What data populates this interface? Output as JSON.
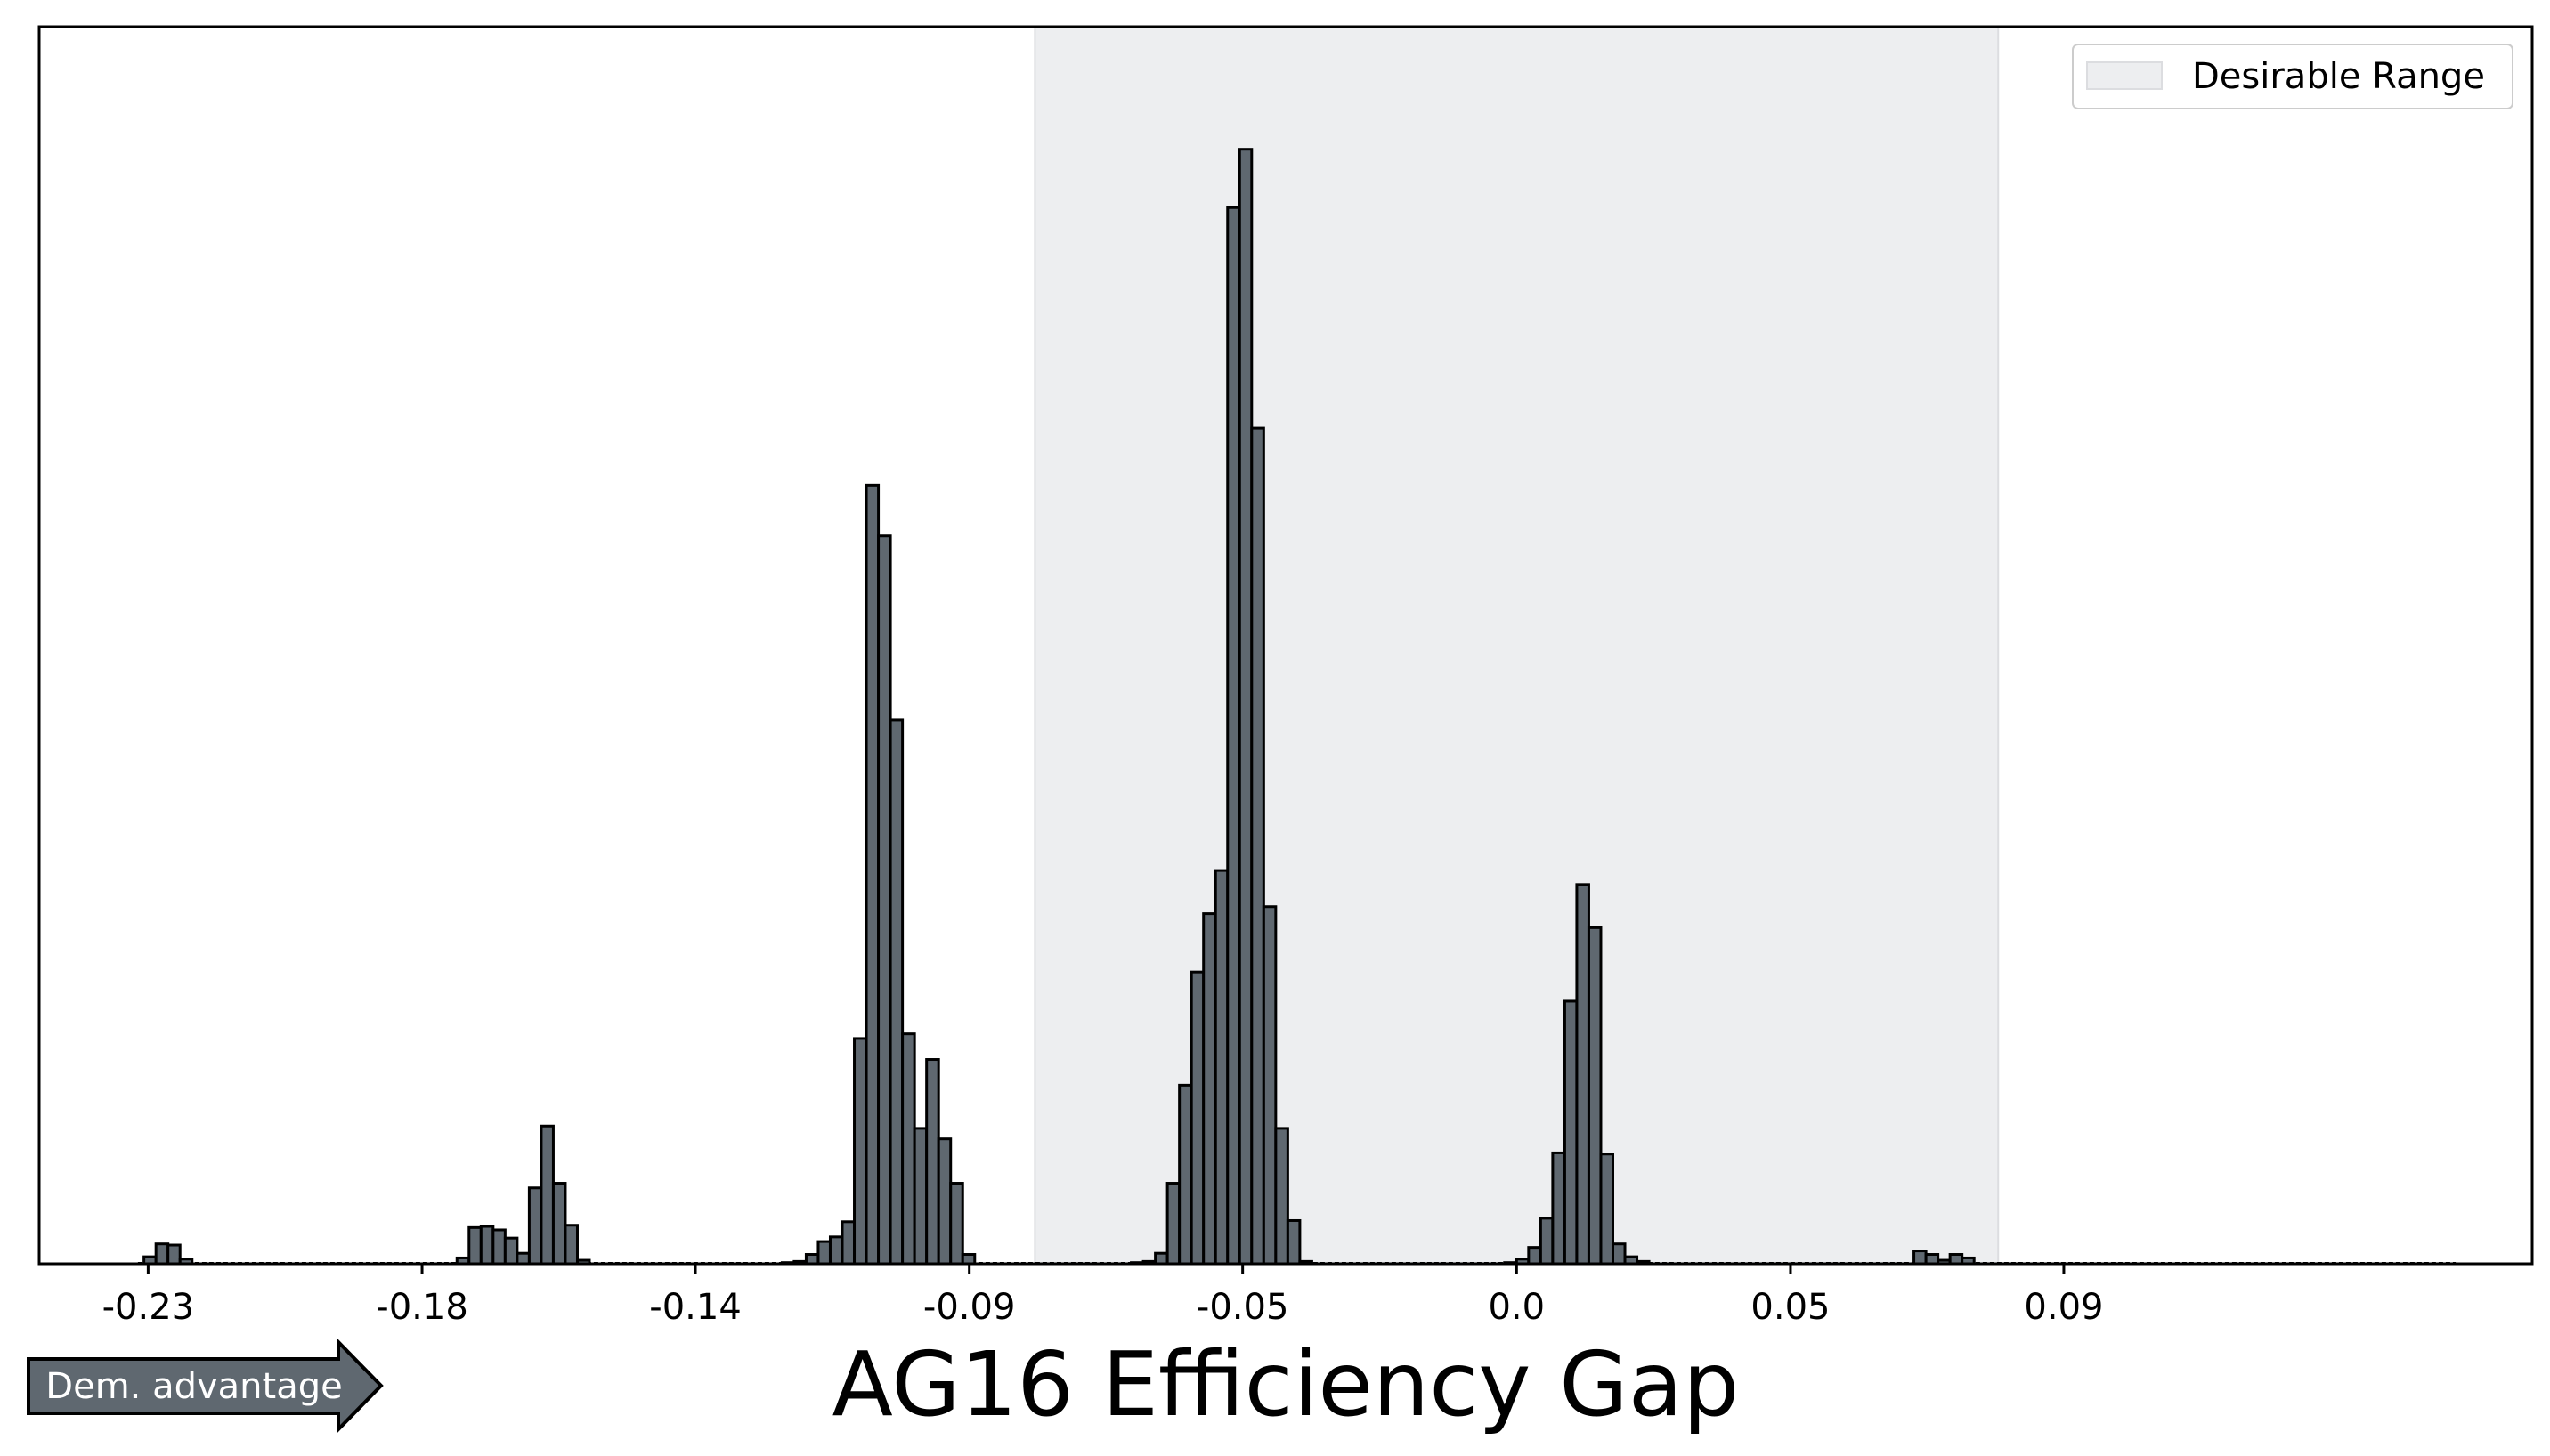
{
  "chart_data": {
    "type": "bar",
    "title": "",
    "xlabel": "AG16 Efficiency Gap",
    "ylabel": "",
    "xlim": [
      -0.2454,
      0.1687
    ],
    "ylim": [
      0,
      1.06
    ],
    "grid": false,
    "bin_width": 0.002,
    "bar_color": "#5f6870",
    "bar_edge_color": "#000000",
    "desirable_range": {
      "label": "Desirable Range",
      "x0": -0.08,
      "x1": 0.08,
      "color": "#edeef0"
    },
    "legend": {
      "position": "top-right",
      "entries": [
        "Desirable Range"
      ]
    },
    "xticks": [
      {
        "value": -0.2273,
        "label": "-0.23"
      },
      {
        "value": -0.1818,
        "label": "-0.18"
      },
      {
        "value": -0.1364,
        "label": "-0.14"
      },
      {
        "value": -0.0909,
        "label": "-0.09"
      },
      {
        "value": -0.0455,
        "label": "-0.05"
      },
      {
        "value": 0.0,
        "label": "0.0"
      },
      {
        "value": 0.0455,
        "label": "0.05"
      },
      {
        "value": 0.0909,
        "label": "0.09"
      }
    ],
    "annotation": {
      "text": "Dem. advantage",
      "color": "#5f6870"
    },
    "bins": [
      [
        -0.228,
        0.006
      ],
      [
        -0.226,
        0.017
      ],
      [
        -0.224,
        0.016
      ],
      [
        -0.222,
        0.004
      ],
      [
        -0.176,
        0.005
      ],
      [
        -0.174,
        0.031
      ],
      [
        -0.172,
        0.032
      ],
      [
        -0.17,
        0.029
      ],
      [
        -0.168,
        0.022
      ],
      [
        -0.166,
        0.009
      ],
      [
        -0.164,
        0.065
      ],
      [
        -0.162,
        0.118
      ],
      [
        -0.16,
        0.069
      ],
      [
        -0.158,
        0.033
      ],
      [
        -0.156,
        0.003
      ],
      [
        -0.122,
        0.001
      ],
      [
        -0.12,
        0.002
      ],
      [
        -0.118,
        0.008
      ],
      [
        -0.116,
        0.019
      ],
      [
        -0.114,
        0.023
      ],
      [
        -0.112,
        0.036
      ],
      [
        -0.11,
        0.193
      ],
      [
        -0.108,
        0.667
      ],
      [
        -0.106,
        0.624
      ],
      [
        -0.104,
        0.466
      ],
      [
        -0.102,
        0.197
      ],
      [
        -0.1,
        0.116
      ],
      [
        -0.098,
        0.175
      ],
      [
        -0.096,
        0.107
      ],
      [
        -0.094,
        0.069
      ],
      [
        -0.092,
        0.008
      ],
      [
        -0.064,
        0.001
      ],
      [
        -0.062,
        0.002
      ],
      [
        -0.06,
        0.009
      ],
      [
        -0.058,
        0.069
      ],
      [
        -0.056,
        0.153
      ],
      [
        -0.054,
        0.25
      ],
      [
        -0.052,
        0.3
      ],
      [
        -0.05,
        0.337
      ],
      [
        -0.048,
        0.905
      ],
      [
        -0.046,
        0.955
      ],
      [
        -0.044,
        0.716
      ],
      [
        -0.042,
        0.306
      ],
      [
        -0.04,
        0.116
      ],
      [
        -0.038,
        0.037
      ],
      [
        -0.036,
        0.002
      ],
      [
        -0.002,
        0.001
      ],
      [
        0.0,
        0.004
      ],
      [
        0.002,
        0.014
      ],
      [
        0.004,
        0.039
      ],
      [
        0.006,
        0.095
      ],
      [
        0.008,
        0.225
      ],
      [
        0.01,
        0.325
      ],
      [
        0.012,
        0.288
      ],
      [
        0.014,
        0.094
      ],
      [
        0.016,
        0.017
      ],
      [
        0.018,
        0.006
      ],
      [
        0.02,
        0.002
      ],
      [
        0.066,
        0.011
      ],
      [
        0.068,
        0.008
      ],
      [
        0.07,
        0.003
      ],
      [
        0.072,
        0.008
      ],
      [
        0.074,
        0.005
      ]
    ]
  }
}
